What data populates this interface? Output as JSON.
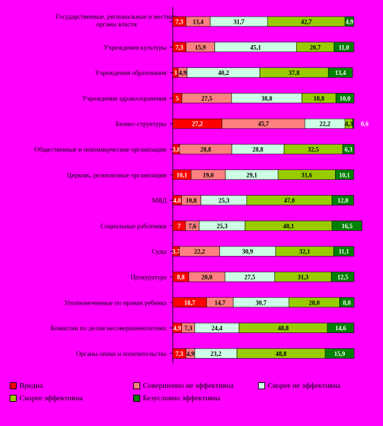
{
  "chart_data": {
    "type": "bar",
    "orientation": "horizontal",
    "stacked": true,
    "xlim": [
      0,
      100
    ],
    "grid": false,
    "legend_position": "bottom",
    "categories": [
      "Государственные, региональные и местные органы власти",
      "Учреждения культуры",
      "Учреждения образования",
      "Учреждения здравоохранения",
      "Бизнес-структуры",
      "Общественные и некоммерческие организации",
      "Церковь, религиозные организации",
      "МВД",
      "Социальные работники",
      "Суды",
      "Прокуратура",
      "Уполномоченные по правам ребенка",
      "Комиссии по делам несовершеннолетних",
      "Органы опеки и попечительства"
    ],
    "series": [
      {
        "name": "Вредна",
        "color": "#ff0000",
        "values": [
          7.3,
          7.3,
          3.0,
          5.0,
          27.2,
          3.8,
          10.1,
          4.8,
          7.0,
          3.7,
          8.8,
          18.7,
          4.9,
          7.3
        ],
        "labels": [
          "7,3",
          "7,3",
          "3",
          "5",
          "27,2",
          "3,8",
          "10,1",
          "4,8",
          "7",
          "3,7",
          "8,8",
          "18,7",
          "4,9",
          "7,3"
        ]
      },
      {
        "name": "Совершенно не эффективна",
        "color": "#ff8080",
        "values": [
          13.4,
          15.9,
          4.9,
          27.5,
          45.7,
          28.8,
          19.0,
          10.8,
          7.6,
          22.2,
          20.0,
          14.7,
          7.3,
          4.9
        ],
        "labels": [
          "13,4",
          "15,9",
          "4,9",
          "27,5",
          "45,7",
          "28,8",
          "19,0",
          "10,8",
          "7,6",
          "22,2",
          "20,0",
          "14,7",
          "7,3",
          "4,9"
        ]
      },
      {
        "name": "Скорее не эффективна",
        "color": "#ccffe5",
        "values": [
          31.7,
          45.1,
          40.2,
          38.8,
          22.2,
          28.8,
          29.1,
          25.3,
          25.3,
          30.9,
          27.5,
          30.7,
          24.4,
          23.2
        ],
        "labels": [
          "31,7",
          "45,1",
          "40,2",
          "38,8",
          "22,2",
          "28,8",
          "29,1",
          "25,3",
          "25,3",
          "30,9",
          "27,5",
          "30,7",
          "24,4",
          "23,2"
        ]
      },
      {
        "name": "Скорее эффективна",
        "color": "#99cc00",
        "values": [
          42.7,
          20.7,
          37.8,
          18.8,
          4.3,
          32.5,
          31.6,
          47.0,
          48.1,
          32.1,
          31.3,
          28.0,
          48.8,
          48.8
        ],
        "labels": [
          "42,7",
          "20,7",
          "37,8",
          "18,8",
          "4,3",
          "32,5",
          "31,6",
          "47,0",
          "48,1",
          "32,1",
          "31,3",
          "28,0",
          "48,8",
          "48,8"
        ]
      },
      {
        "name": "Безусловно эффективна",
        "color": "#008000",
        "values": [
          4.9,
          11.0,
          13.4,
          10.0,
          0.6,
          6.3,
          10.1,
          12.0,
          16.5,
          11.1,
          12.5,
          8.0,
          14.6,
          15.9
        ],
        "labels": [
          "4,9",
          "11,0",
          "13,4",
          "10,0",
          "0,6",
          "6,3",
          "10,1",
          "12,0",
          "16,5",
          "11,1",
          "12,5",
          "8,0",
          "14,6",
          "15,9"
        ]
      }
    ]
  }
}
